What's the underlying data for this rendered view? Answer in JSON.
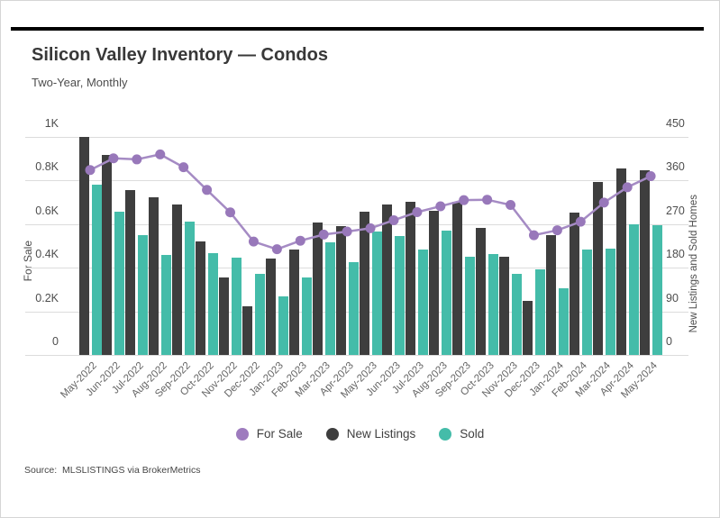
{
  "header": {
    "title": "Silicon Valley Inventory — Condos",
    "subtitle": "Two-Year, Monthly"
  },
  "footer": {
    "source": "Source:  MLSLISTINGS via BrokerMetrics"
  },
  "legend": {
    "items": [
      {
        "label": "For Sale",
        "color": "#9E7BBE"
      },
      {
        "label": "New Listings",
        "color": "#3E3E3E"
      },
      {
        "label": "Sold",
        "color": "#44BCA9"
      }
    ]
  },
  "chart_data": {
    "type": "combo-bar-line",
    "title": "Silicon Valley Inventory — Condos",
    "subtitle": "Two-Year, Monthly",
    "categories": [
      "May-2022",
      "Jun-2022",
      "Jul-2022",
      "Aug-2022",
      "Sep-2022",
      "Oct-2022",
      "Nov-2022",
      "Dec-2022",
      "Jan-2023",
      "Feb-2023",
      "Mar-2023",
      "Apr-2023",
      "May-2023",
      "Jun-2023",
      "Jul-2023",
      "Aug-2023",
      "Sep-2023",
      "Oct-2023",
      "Nov-2023",
      "Dec-2023",
      "Jan-2024",
      "Feb-2024",
      "Mar-2024",
      "Apr-2024",
      "May-2024"
    ],
    "series": [
      {
        "name": "For Sale",
        "type": "line",
        "axis": "left",
        "color": "#A58BC4",
        "point_color": "#9878BA",
        "values": [
          848,
          902,
          897,
          920,
          861,
          757,
          654,
          520,
          485,
          524,
          552,
          566,
          581,
          618,
          655,
          682,
          710,
          712,
          688,
          549,
          572,
          611,
          699,
          769,
          820
        ]
      },
      {
        "name": "New Listings",
        "type": "bar",
        "axis": "right",
        "color": "#3E3E3E",
        "values": [
          450,
          413,
          341,
          326,
          310,
          234,
          159,
          101,
          199,
          217,
          274,
          265,
          296,
          311,
          316,
          297,
          316,
          263,
          203,
          111,
          248,
          293,
          357,
          385,
          382
        ]
      },
      {
        "name": "Sold",
        "type": "bar",
        "axis": "right",
        "color": "#44BCA9",
        "values": [
          352,
          296,
          248,
          206,
          276,
          211,
          201,
          167,
          121,
          160,
          233,
          192,
          255,
          245,
          217,
          257,
          203,
          208,
          167,
          177,
          138,
          217,
          219,
          270,
          268
        ]
      }
    ],
    "left_axis": {
      "title": "For Sale",
      "tick_labels": [
        "0",
        "0.2K",
        "0.4K",
        "0.6K",
        "0.8K",
        "1K"
      ],
      "tick_values": [
        0,
        200,
        400,
        600,
        800,
        1000
      ],
      "range": [
        0,
        1000
      ]
    },
    "right_axis": {
      "title": "New Listings and Sold Homes",
      "tick_labels": [
        "0",
        "90",
        "180",
        "270",
        "360",
        "450"
      ],
      "tick_values": [
        0,
        90,
        180,
        270,
        360,
        450
      ],
      "range": [
        0,
        450
      ]
    },
    "grid": true,
    "legend_position": "bottom"
  }
}
